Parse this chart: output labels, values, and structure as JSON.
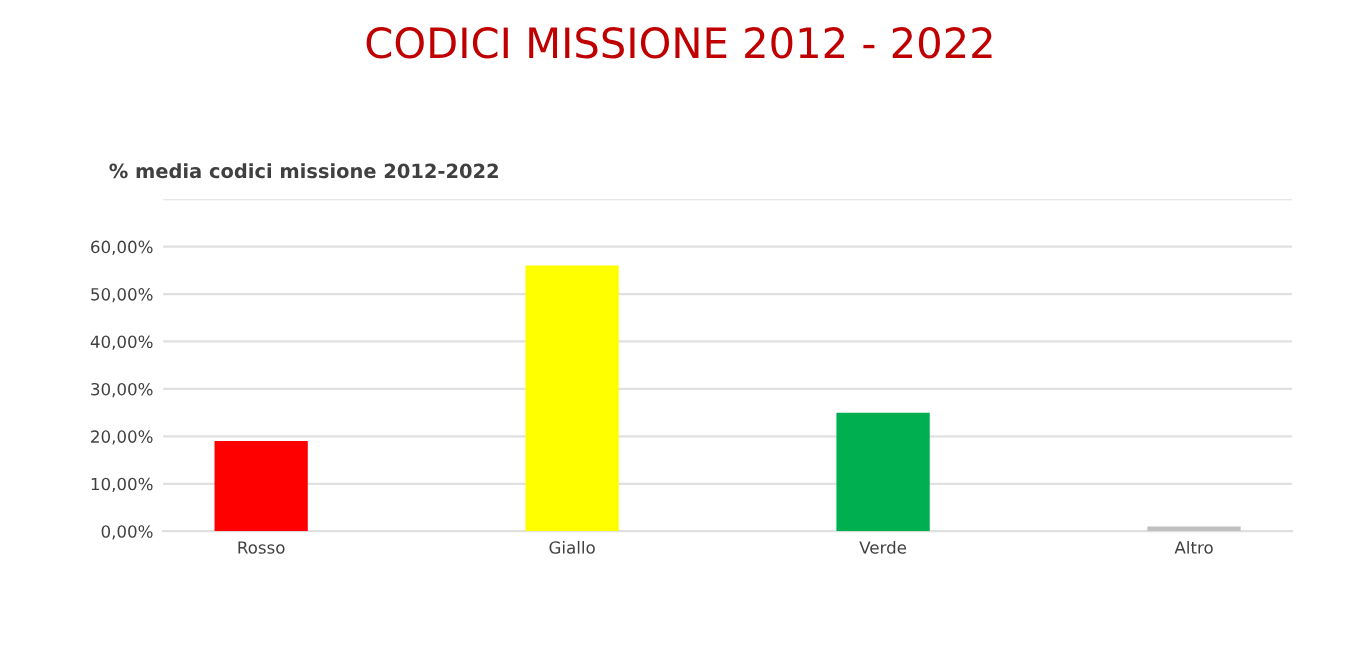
{
  "chart_data": {
    "type": "bar",
    "title": "CODICI MISSIONE 2012 - 2022",
    "subtitle": "% media codici missione 2012-2022",
    "categories": [
      "Rosso",
      "Giallo",
      "Verde",
      "Altro"
    ],
    "values": [
      19,
      56,
      25,
      1
    ],
    "colors": [
      "#ff0000",
      "#ffff00",
      "#00b050",
      "#c0c0c0"
    ],
    "ylim": [
      0,
      70
    ],
    "yticks": [
      {
        "value": 0,
        "label": "0,00%"
      },
      {
        "value": 10,
        "label": "10,00%"
      },
      {
        "value": 20,
        "label": "20,00%"
      },
      {
        "value": 30,
        "label": "30,00%"
      },
      {
        "value": 40,
        "label": "40,00%"
      },
      {
        "value": 50,
        "label": "50,00%"
      },
      {
        "value": 60,
        "label": "60,00%"
      },
      {
        "value": 70,
        "label": null
      }
    ],
    "grid": "y"
  }
}
